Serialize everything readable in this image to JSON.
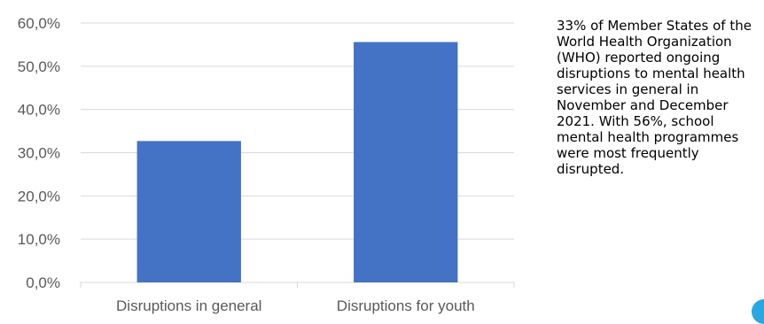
{
  "chart_data": {
    "type": "bar",
    "categories": [
      "Disruptions in general",
      "Disruptions for youth"
    ],
    "values": [
      32.7,
      55.6
    ],
    "y_ticks": [
      "0,0%",
      "10,0%",
      "20,0%",
      "30,0%",
      "40,0%",
      "50,0%",
      "60,0%"
    ],
    "ylim": [
      0,
      60
    ],
    "y_step": 10,
    "grid": true,
    "bar_color": "#4472c4",
    "grid_color": "#d9d9d9"
  },
  "side_note": {
    "text": "33% of Member States of the World Health Organization (WHO) reported ongoing disruptions to mental health services in general in November and December 2021. With 56%, school mental health programmes were most frequently disrupted."
  },
  "corner_mark": {
    "color": "#2aa6e0"
  }
}
